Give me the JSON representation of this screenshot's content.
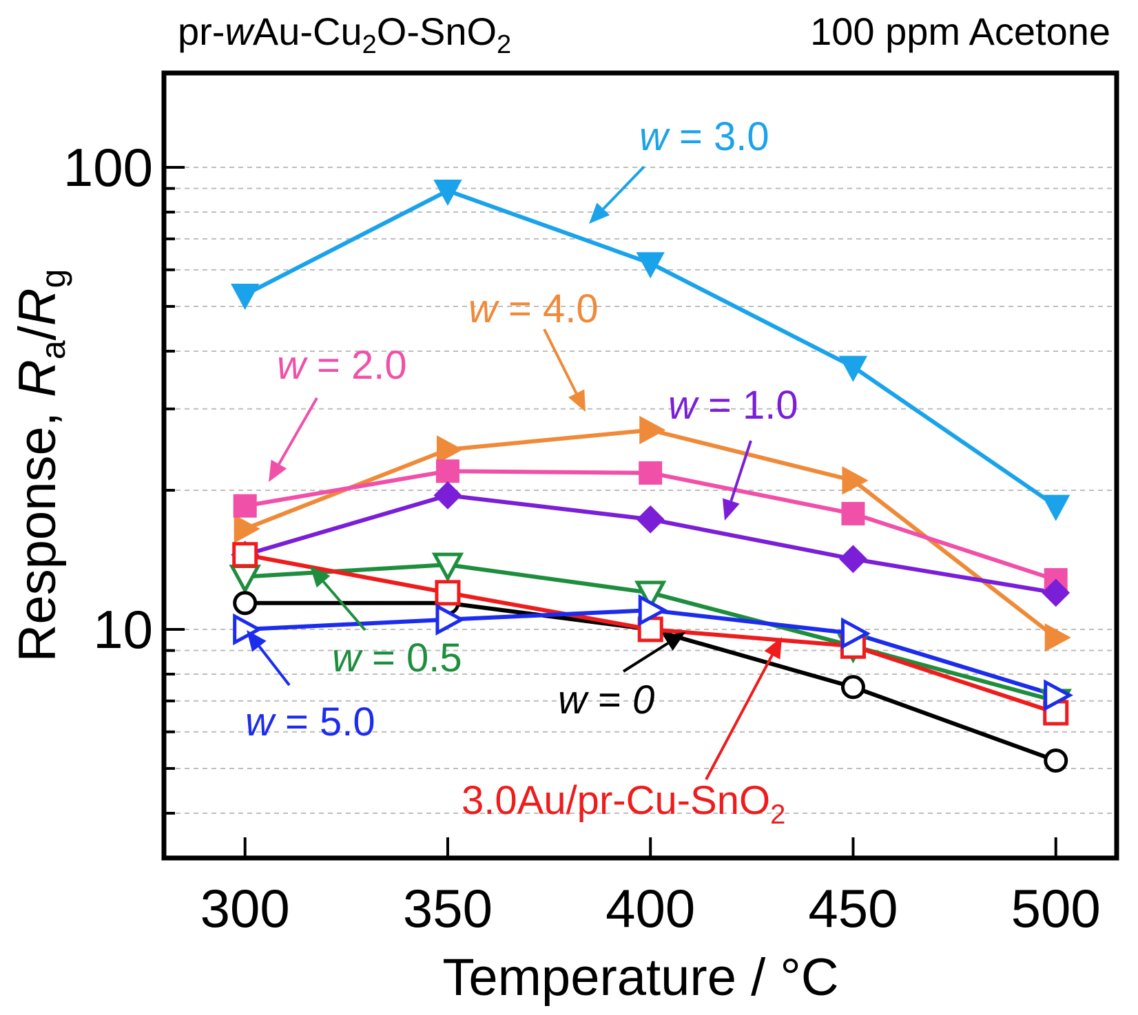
{
  "chart_data": {
    "type": "line",
    "title_left": {
      "prefix": "pr-",
      "italic": "w",
      "mid": "Au-Cu",
      "sub1": "2",
      "mid2": "O-SnO",
      "sub2": "2"
    },
    "title_right": "100 ppm Acetone",
    "xlabel": "Temperature / °C",
    "ylabel": {
      "text": "Response, ",
      "r1": "R",
      "sub1": "a",
      "slash": "/",
      "r2": "R",
      "sub2": "g"
    },
    "y_scale": "log",
    "xlim": [
      280,
      515
    ],
    "ylim": [
      3.2,
      160
    ],
    "x": [
      300,
      350,
      400,
      450,
      500
    ],
    "x_ticks": [
      300,
      350,
      400,
      450,
      500
    ],
    "y_tick_labels": [
      {
        "value": 10,
        "label": "10"
      },
      {
        "value": 100,
        "label": "100"
      }
    ],
    "minor_y_ticks": [
      4,
      5,
      6,
      7,
      8,
      9,
      20,
      30,
      40,
      50,
      60,
      70,
      80,
      90
    ],
    "grid": true,
    "series": [
      {
        "id": "w3",
        "name": "w = 3.0",
        "color": "#1aa3ea",
        "marker": "triangle-down",
        "filled": true,
        "values": [
          53,
          89,
          62,
          37,
          18.5
        ]
      },
      {
        "id": "w4",
        "name": "w = 4.0",
        "color": "#ee8a38",
        "marker": "triangle-right",
        "filled": true,
        "values": [
          16.5,
          24.5,
          27.0,
          21.0,
          9.6
        ]
      },
      {
        "id": "w2",
        "name": "w = 2.0",
        "color": "#f050a8",
        "marker": "square",
        "filled": true,
        "values": [
          18.5,
          22.0,
          21.8,
          17.8,
          12.8
        ]
      },
      {
        "id": "w1",
        "name": "w = 1.0",
        "color": "#7a1ed8",
        "marker": "diamond",
        "filled": true,
        "values": [
          14.5,
          19.5,
          17.3,
          14.2,
          12.0
        ]
      },
      {
        "id": "w05",
        "name": "w = 0.5",
        "color": "#1e8e3e",
        "marker": "triangle-down",
        "filled": false,
        "values": [
          13.0,
          13.8,
          12.0,
          9.2,
          7.0
        ]
      },
      {
        "id": "w0",
        "name": "w = 0",
        "color": "#000000",
        "marker": "circle",
        "filled": false,
        "values": [
          11.4,
          11.4,
          10.0,
          7.5,
          5.2
        ]
      },
      {
        "id": "ref",
        "name": "3.0Au/pr-Cu-SnO2",
        "color": "#ee1c1c",
        "marker": "square",
        "filled": false,
        "values": [
          14.5,
          12.0,
          10.0,
          9.2,
          6.6
        ]
      },
      {
        "id": "w5",
        "name": "w = 5.0",
        "color": "#1c2cee",
        "marker": "triangle-right",
        "filled": false,
        "values": [
          10.0,
          10.5,
          11.0,
          9.8,
          7.2
        ]
      }
    ],
    "annotations": [
      {
        "series": "w3",
        "italic": "w",
        "text": " = 3.0"
      },
      {
        "series": "w4",
        "italic": "w",
        "text": " = 4.0"
      },
      {
        "series": "w2",
        "italic": "w",
        "text": " = 2.0"
      },
      {
        "series": "w1",
        "italic": "w",
        "text": " = 1.0"
      },
      {
        "series": "w05",
        "italic": "w",
        "text": " = 0.5"
      },
      {
        "series": "w5",
        "italic": "w",
        "text": " = 5.0"
      },
      {
        "series": "w0",
        "italic": "w",
        "text": " = ",
        "italic_value": "0"
      },
      {
        "series": "ref",
        "italic": "",
        "text": "3.0Au/pr-Cu-SnO",
        "sub": "2"
      }
    ]
  }
}
